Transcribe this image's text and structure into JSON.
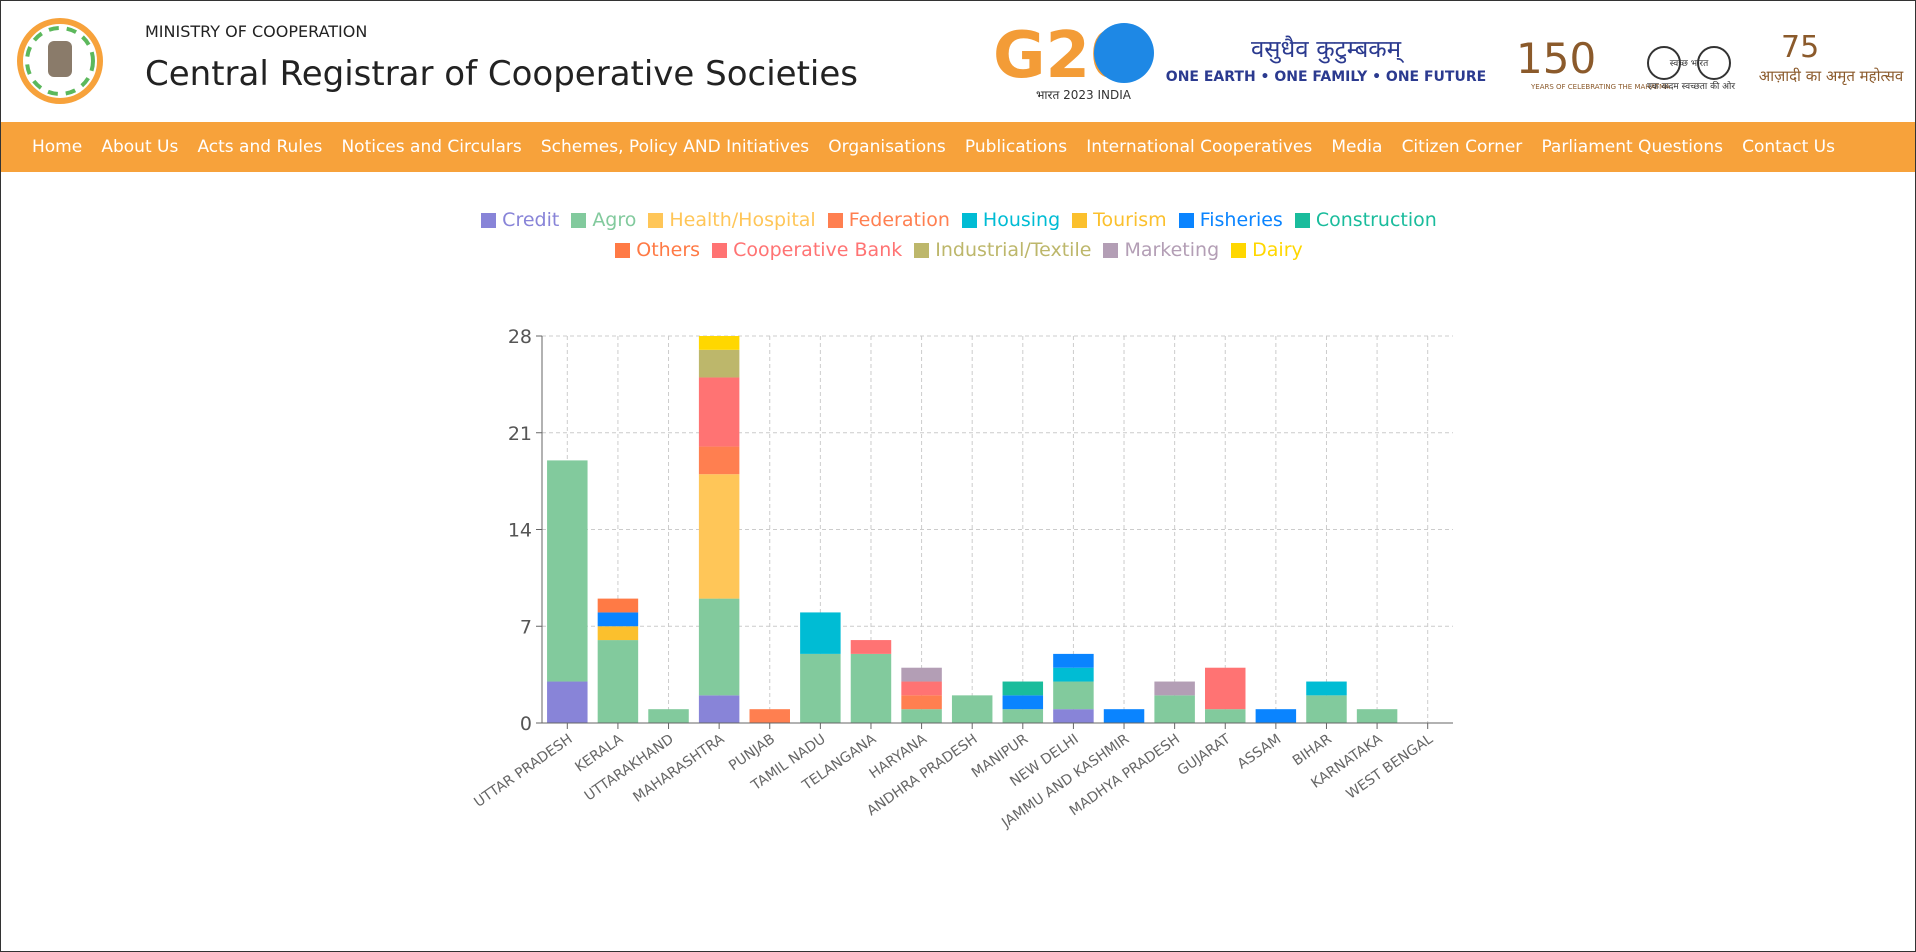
{
  "header": {
    "ministry": "MINISTRY OF COOPERATION",
    "title": "Central Registrar of Cooperative Societies",
    "logos": {
      "g20": "G20",
      "g20_sub": "भारत 2023 INDIA",
      "vasudhaiva": "वसुधैव कुटुम्बकम्",
      "motto": "ONE EARTH • ONE FAMILY • ONE FUTURE",
      "mahatma_num": "150",
      "mahatma_text": "YEARS OF CELEBRATING THE MAHATMA",
      "swachh": "स्वच्छ भारत",
      "swachh_sub": "एक कदम स्वच्छता की ओर",
      "azadi_num": "75",
      "azadi_text": "आज़ादी का अमृत महोत्सव"
    }
  },
  "nav": [
    "Home",
    "About Us",
    "Acts and Rules",
    "Notices and Circulars",
    "Schemes, Policy AND Initiatives",
    "Organisations",
    "Publications",
    "International Cooperatives",
    "Media",
    "Citizen Corner",
    "Parliament Questions",
    "Contact Us"
  ],
  "chart_data": {
    "type": "stacked_bar",
    "categories": [
      "UTTAR PRADESH",
      "KERALA",
      "UTTARAKHAND",
      "MAHARASHTRA",
      "PUNJAB",
      "TAMIL NADU",
      "TELANGANA",
      "HARYANA",
      "ANDHRA PRADESH",
      "MANIPUR",
      "NEW DELHI",
      "JAMMU AND KASHMIR",
      "MADHYA PRADESH",
      "GUJARAT",
      "ASSAM",
      "BIHAR",
      "KARNATAKA",
      "WEST BENGAL"
    ],
    "series": [
      {
        "name": "Credit",
        "color": "#8884d8",
        "values": [
          3,
          0,
          0,
          2,
          0,
          0,
          0,
          0,
          0,
          0,
          1,
          0,
          0,
          0,
          0,
          0,
          0,
          0
        ]
      },
      {
        "name": "Agro",
        "color": "#82ca9d",
        "values": [
          16,
          6,
          1,
          7,
          0,
          5,
          5,
          1,
          2,
          1,
          2,
          0,
          2,
          1,
          0,
          2,
          1,
          0
        ]
      },
      {
        "name": "Health/Hospital",
        "color": "#ffc658",
        "values": [
          0,
          0,
          0,
          9,
          0,
          0,
          0,
          0,
          0,
          0,
          0,
          0,
          0,
          0,
          0,
          0,
          0,
          0
        ]
      },
      {
        "name": "Federation",
        "color": "#ff7f50",
        "values": [
          0,
          0,
          0,
          2,
          1,
          0,
          0,
          1,
          0,
          0,
          0,
          0,
          0,
          0,
          0,
          0,
          0,
          0
        ]
      },
      {
        "name": "Housing",
        "color": "#00bcd4",
        "values": [
          0,
          0,
          0,
          0,
          0,
          3,
          0,
          0,
          0,
          0,
          1,
          0,
          0,
          0,
          0,
          1,
          0,
          0
        ]
      },
      {
        "name": "Tourism",
        "color": "#fbc02d",
        "values": [
          0,
          1,
          0,
          0,
          0,
          0,
          0,
          0,
          0,
          0,
          0,
          0,
          0,
          0,
          0,
          0,
          0,
          0
        ]
      },
      {
        "name": "Fisheries",
        "color": "#0a84ff",
        "values": [
          0,
          1,
          0,
          0,
          0,
          0,
          0,
          0,
          0,
          1,
          1,
          1,
          0,
          0,
          1,
          0,
          0,
          0
        ]
      },
      {
        "name": "Construction",
        "color": "#1abc9c",
        "values": [
          0,
          0,
          0,
          0,
          0,
          0,
          0,
          0,
          0,
          1,
          0,
          0,
          0,
          0,
          0,
          0,
          0,
          0
        ]
      },
      {
        "name": "Others",
        "color": "#ff7a45",
        "values": [
          0,
          1,
          0,
          0,
          0,
          0,
          0,
          0,
          0,
          0,
          0,
          0,
          0,
          0,
          0,
          0,
          0,
          0
        ]
      },
      {
        "name": "Cooperative Bank",
        "color": "#ff7373",
        "values": [
          0,
          0,
          0,
          5,
          0,
          0,
          1,
          1,
          0,
          0,
          0,
          0,
          0,
          3,
          0,
          0,
          0,
          0
        ]
      },
      {
        "name": "Industrial/Textile",
        "color": "#bdb76b",
        "values": [
          0,
          0,
          0,
          2,
          0,
          0,
          0,
          0,
          0,
          0,
          0,
          0,
          0,
          0,
          0,
          0,
          0,
          0
        ]
      },
      {
        "name": "Marketing",
        "color": "#b39eb5",
        "values": [
          0,
          0,
          0,
          0,
          0,
          0,
          0,
          1,
          0,
          0,
          0,
          0,
          1,
          0,
          0,
          0,
          0,
          0
        ]
      },
      {
        "name": "Dairy",
        "color": "#ffd700",
        "values": [
          0,
          0,
          0,
          1,
          0,
          0,
          0,
          0,
          0,
          0,
          0,
          0,
          0,
          0,
          0,
          0,
          0,
          0
        ]
      }
    ],
    "ylim": [
      0,
      28
    ],
    "yticks": [
      0,
      7,
      14,
      21,
      28
    ],
    "grid": true
  }
}
